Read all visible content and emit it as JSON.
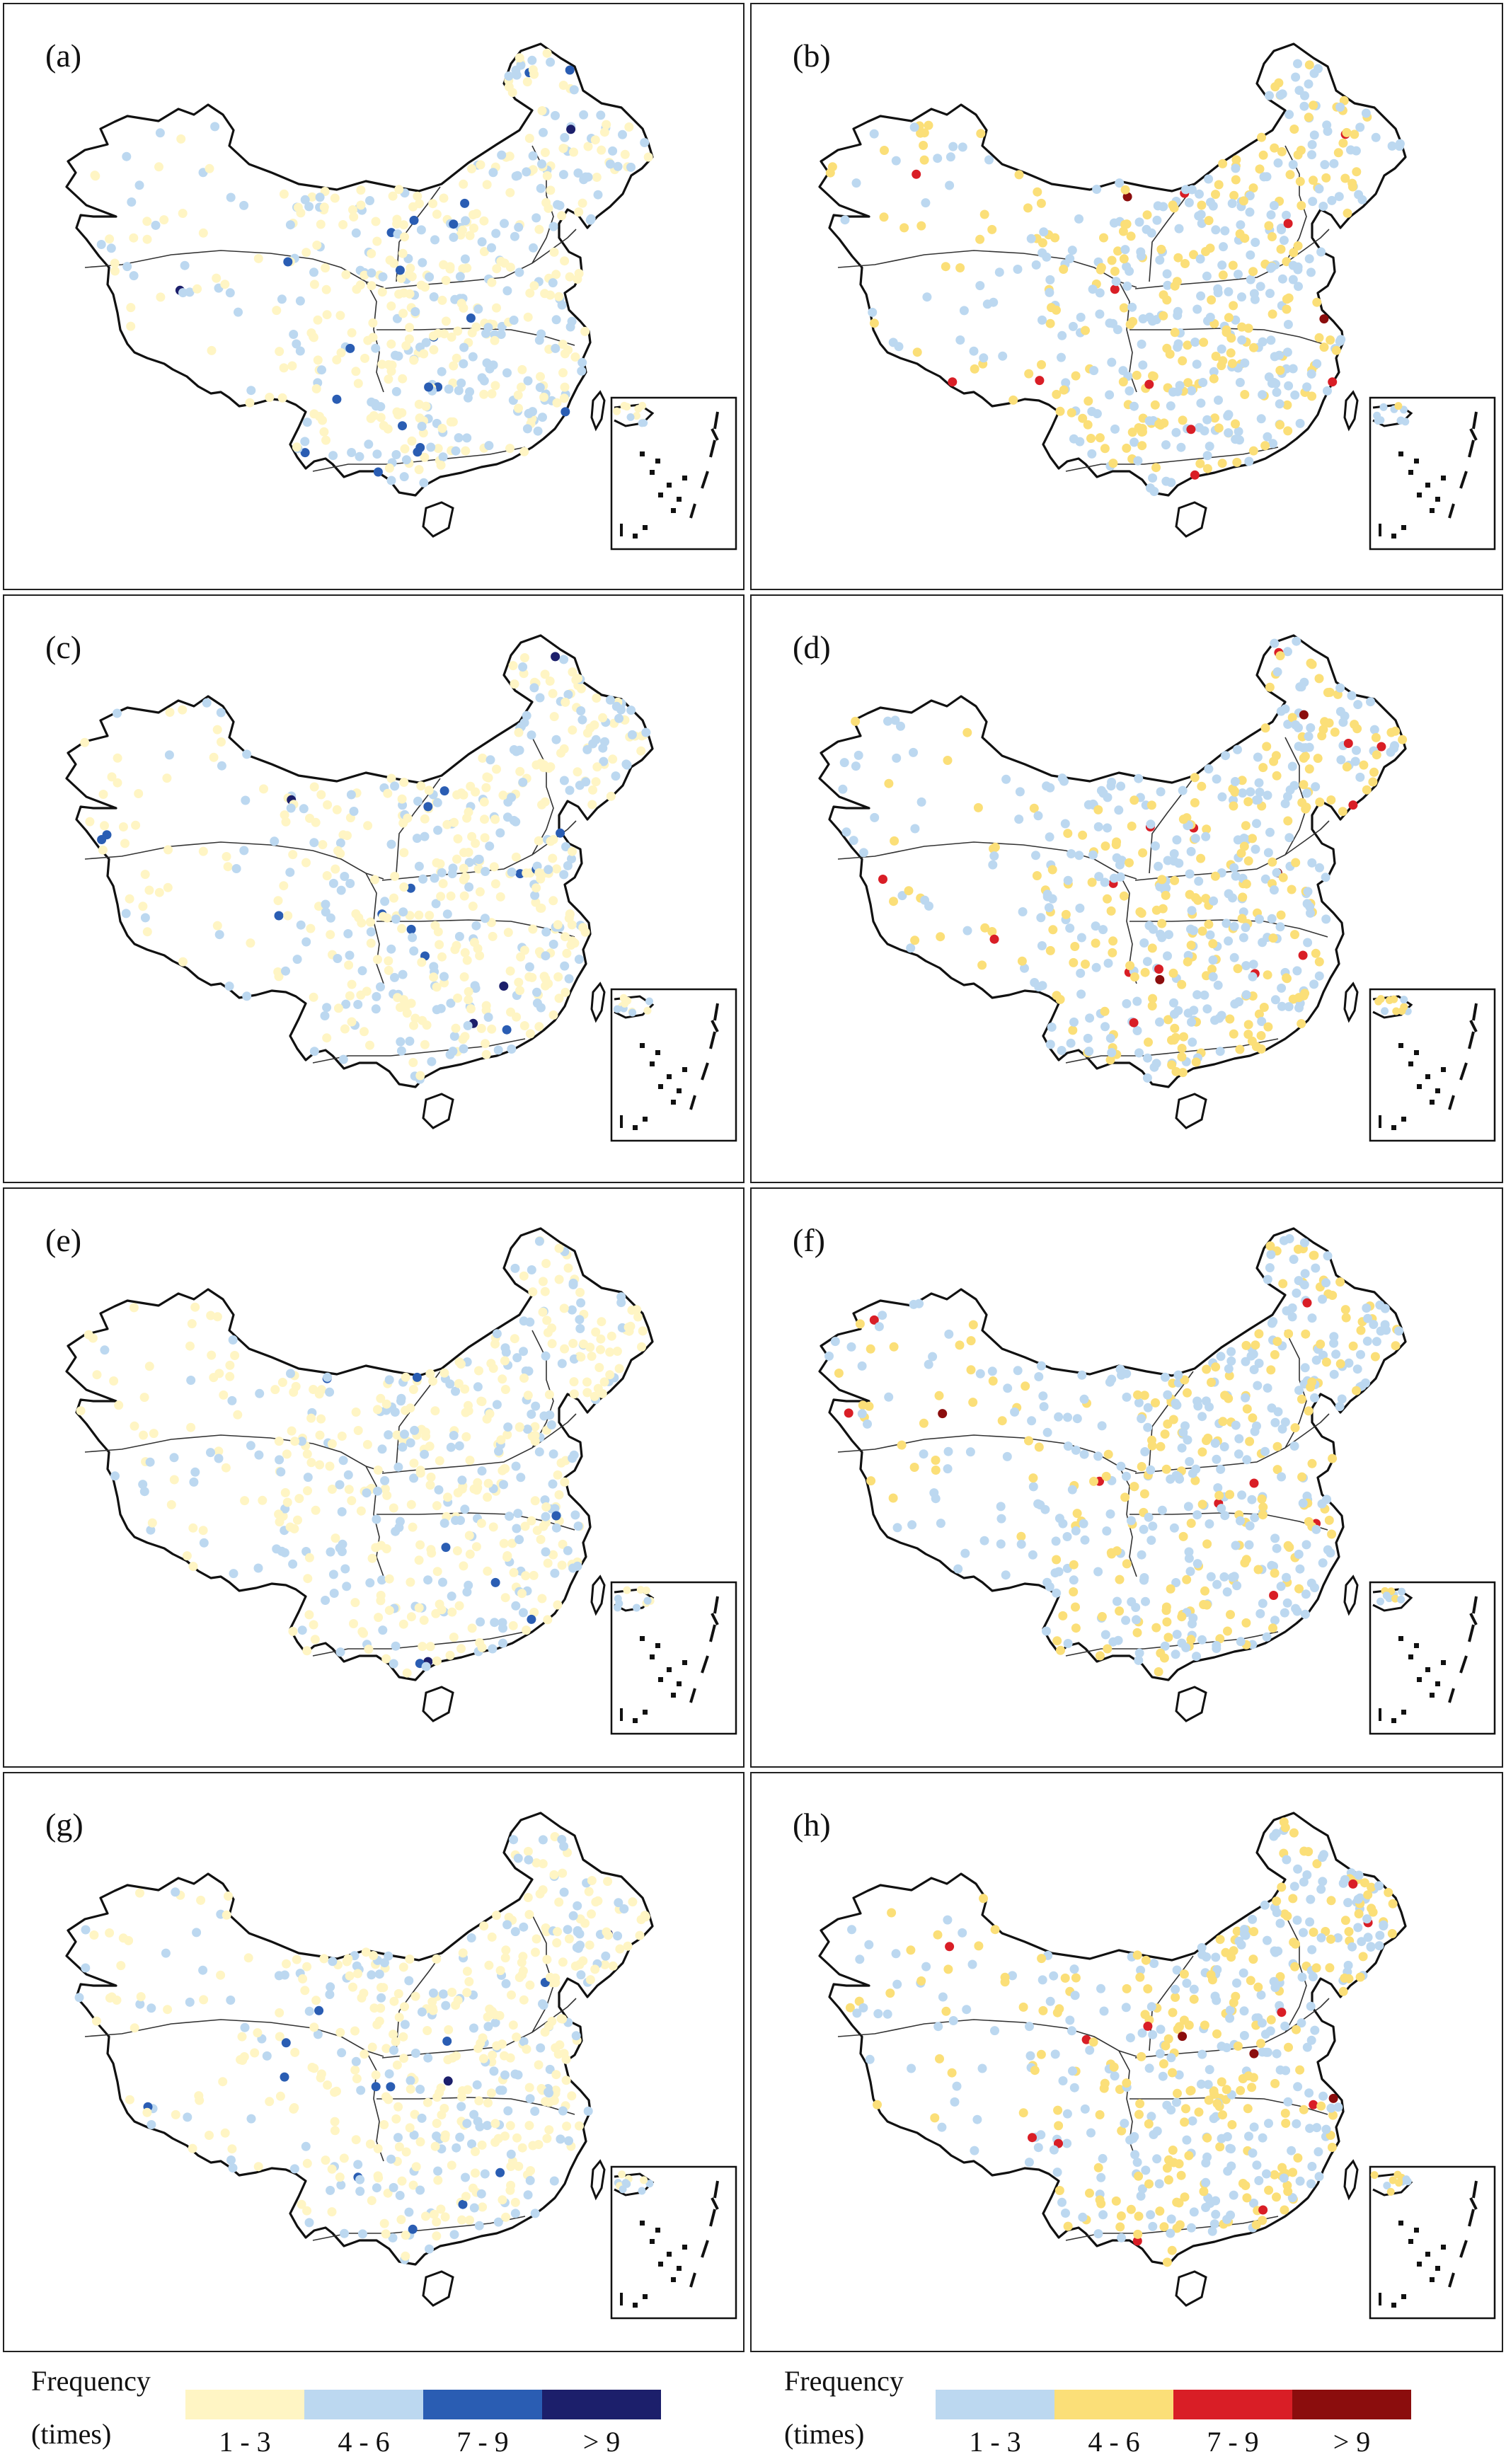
{
  "panels": [
    {
      "id": "a",
      "label": "(a)",
      "scheme": "blue",
      "seed": 11
    },
    {
      "id": "b",
      "label": "(b)",
      "scheme": "red",
      "seed": 23
    },
    {
      "id": "c",
      "label": "(c)",
      "scheme": "blue",
      "seed": 37
    },
    {
      "id": "d",
      "label": "(d)",
      "scheme": "red",
      "seed": 41
    },
    {
      "id": "e",
      "label": "(e)",
      "scheme": "blue",
      "seed": 53
    },
    {
      "id": "f",
      "label": "(f)",
      "scheme": "red",
      "seed": 67
    },
    {
      "id": "g",
      "label": "(g)",
      "scheme": "blue",
      "seed": 79
    },
    {
      "id": "h",
      "label": "(h)",
      "scheme": "red",
      "seed": 97
    }
  ],
  "legends": {
    "blue": {
      "title": "Frequency",
      "unit": "(times)",
      "classes": [
        {
          "label": "1 - 3",
          "color": "#fff5c4"
        },
        {
          "label": "4 - 6",
          "color": "#bcd8f0"
        },
        {
          "label": "7 - 9",
          "color": "#2a5db3"
        },
        {
          "label": "> 9",
          "color": "#1c1f6b"
        }
      ]
    },
    "red": {
      "title": "Frequency",
      "unit": "(times)",
      "classes": [
        {
          "label": "1 - 3",
          "color": "#bcd8f0"
        },
        {
          "label": "4 - 6",
          "color": "#fbdf78"
        },
        {
          "label": "7 - 9",
          "color": "#d91e26"
        },
        {
          "label": "> 9",
          "color": "#8b0d0d"
        }
      ]
    }
  }
}
